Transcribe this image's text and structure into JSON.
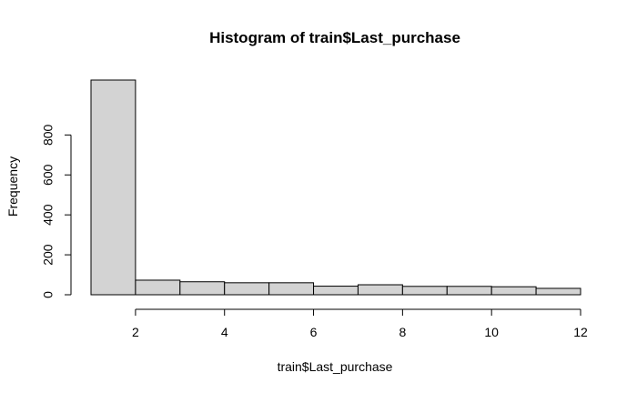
{
  "chart_data": {
    "type": "bar",
    "title": "Histogram of train$Last_purchase",
    "xlabel": "train$Last_purchase",
    "ylabel": "Frequency",
    "bins": [
      {
        "from": 1,
        "to": 2,
        "count": 1075
      },
      {
        "from": 2,
        "to": 3,
        "count": 73
      },
      {
        "from": 3,
        "to": 4,
        "count": 65
      },
      {
        "from": 4,
        "to": 5,
        "count": 60
      },
      {
        "from": 5,
        "to": 6,
        "count": 60
      },
      {
        "from": 6,
        "to": 7,
        "count": 43
      },
      {
        "from": 7,
        "to": 8,
        "count": 50
      },
      {
        "from": 8,
        "to": 9,
        "count": 42
      },
      {
        "from": 9,
        "to": 10,
        "count": 42
      },
      {
        "from": 10,
        "to": 11,
        "count": 40
      },
      {
        "from": 11,
        "to": 12,
        "count": 32
      }
    ],
    "xlim": [
      1,
      12
    ],
    "ylim": [
      0,
      1075
    ],
    "x_ticks": [
      2,
      4,
      6,
      8,
      10,
      12
    ],
    "y_ticks": [
      0,
      200,
      400,
      600,
      800
    ],
    "grid": false,
    "legend": "none",
    "colors": {
      "bar_fill": "#d3d3d3",
      "bar_stroke": "#000000",
      "axis": "#000000"
    }
  }
}
